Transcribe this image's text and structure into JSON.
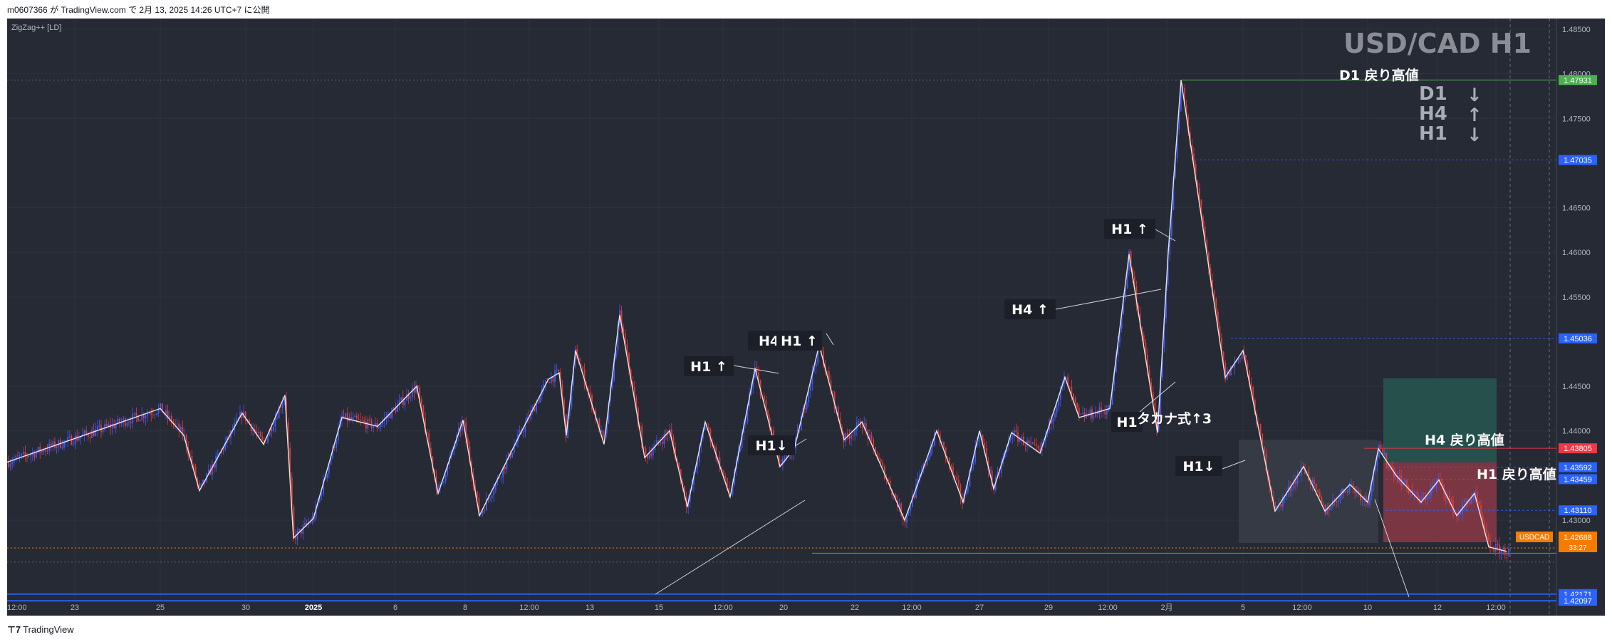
{
  "header": {
    "publish_line": "m0607366 が TradingView.com で 2月 13, 2025 14:26 UTC+7 に公開"
  },
  "footer": {
    "brand": "TradingView"
  },
  "colors": {
    "background": "#262a35",
    "up_candle": "#3d5afe",
    "down_candle": "#e53935",
    "zigzag": "#e6e6e6",
    "green_level": "#4caf50",
    "red_level": "#f23645",
    "blue_level": "#2962ff",
    "current_price": "#f57c00"
  },
  "chart_data": {
    "type": "candlestick",
    "title": "USD/CAD H1",
    "indicator": "ZigZag++ [LD]",
    "symbol": "USDCAD",
    "ylim": [
      1.4193,
      1.4862
    ],
    "y_ticks": [
      1.485,
      1.48,
      1.475,
      1.465,
      1.46,
      1.455,
      1.445,
      1.44,
      1.43
    ],
    "x_ticks": [
      "12:00",
      "23",
      "25",
      "30",
      "2025",
      "6",
      "8",
      "12:00",
      "13",
      "15",
      "12:00",
      "20",
      "22",
      "12:00",
      "27",
      "29",
      "12:00",
      "2月",
      "5",
      "12:00",
      "10",
      "12",
      "12:00"
    ],
    "current_price": "1.42688",
    "countdown": "33:27",
    "price_labels": [
      {
        "value": "1.47931",
        "role": "green"
      },
      {
        "value": "1.47035",
        "role": "blue"
      },
      {
        "value": "1.45036",
        "role": "blue"
      },
      {
        "value": "1.43805",
        "role": "red"
      },
      {
        "value": "1.43592",
        "role": "blue"
      },
      {
        "value": "1.43459",
        "role": "blue"
      },
      {
        "value": "1.43110",
        "role": "blue"
      },
      {
        "value": "1.42171",
        "role": "blue"
      },
      {
        "value": "1.42097",
        "role": "blue"
      }
    ],
    "trend_panel": [
      {
        "tf": "D1",
        "dir": "↓"
      },
      {
        "tf": "H4",
        "dir": "↑"
      },
      {
        "tf": "H1",
        "dir": "↓"
      }
    ],
    "level_labels": [
      "D1 戻り高値",
      "H4 戻り高値",
      "H1 戻り高値"
    ],
    "annotations": [
      "H1 ↑",
      "H4",
      "H1 ↑",
      "H1↓",
      "H4 ↑",
      "H1 ↑",
      "H1",
      "タカナ式↑3",
      "H1↓"
    ]
  }
}
